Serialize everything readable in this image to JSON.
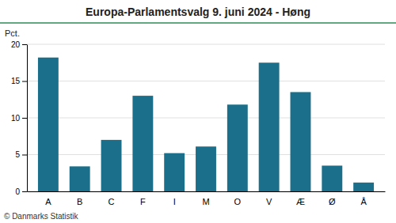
{
  "chart_data": {
    "type": "bar",
    "title": "Europa-Parlamentsvalg 9. juni 2024 - Høng",
    "categories": [
      "A",
      "B",
      "C",
      "F",
      "I",
      "M",
      "O",
      "V",
      "Æ",
      "Ø",
      "Å"
    ],
    "values": [
      18.2,
      3.4,
      7.0,
      13.0,
      5.2,
      6.1,
      11.8,
      17.5,
      13.5,
      3.5,
      1.2
    ],
    "color": "#1b6f8a",
    "ylabel": "Pct.",
    "ylim": [
      0,
      20
    ],
    "yticks": [
      0,
      5,
      10,
      15,
      20
    ],
    "grid": true,
    "footer": "© Danmarks Statistik"
  }
}
